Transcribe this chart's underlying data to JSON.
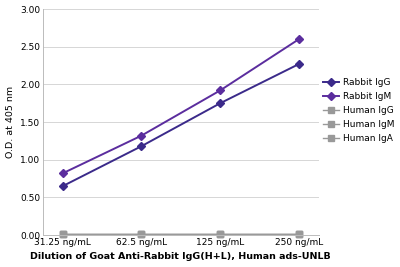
{
  "x_labels": [
    "31.25 ng/mL",
    "62.5 ng/mL",
    "125 ng/mL",
    "250 ng/mL"
  ],
  "x_values": [
    0,
    1,
    2,
    3
  ],
  "series": [
    {
      "label": "Rabbit IgG",
      "y": [
        0.65,
        1.18,
        1.75,
        2.27
      ],
      "color": "#3B2A8A",
      "marker": "D",
      "linewidth": 1.4,
      "markersize": 4.5
    },
    {
      "label": "Rabbit IgM",
      "y": [
        0.82,
        1.32,
        1.92,
        2.6
      ],
      "color": "#5B2D9E",
      "marker": "D",
      "linewidth": 1.4,
      "markersize": 4.5
    },
    {
      "label": "Human IgG",
      "y": [
        0.02,
        0.02,
        0.02,
        0.02
      ],
      "color": "#999999",
      "marker": "s",
      "linewidth": 1.0,
      "markersize": 4
    },
    {
      "label": "Human IgM",
      "y": [
        0.02,
        0.02,
        0.02,
        0.02
      ],
      "color": "#999999",
      "marker": "s",
      "linewidth": 1.0,
      "markersize": 4
    },
    {
      "label": "Human IgA",
      "y": [
        0.02,
        0.02,
        0.02,
        0.02
      ],
      "color": "#999999",
      "marker": "s",
      "linewidth": 1.0,
      "markersize": 4
    }
  ],
  "ylabel": "O.D. at 405 nm",
  "xlabel": "Dilution of Goat Anti-Rabbit IgG(H+L), Human ads-UNLB",
  "ylim": [
    0.0,
    3.0
  ],
  "yticks": [
    0.0,
    0.5,
    1.0,
    1.5,
    2.0,
    2.5,
    3.0
  ],
  "legend_fontsize": 6.5,
  "axis_label_fontsize": 6.8,
  "tick_fontsize": 6.5
}
